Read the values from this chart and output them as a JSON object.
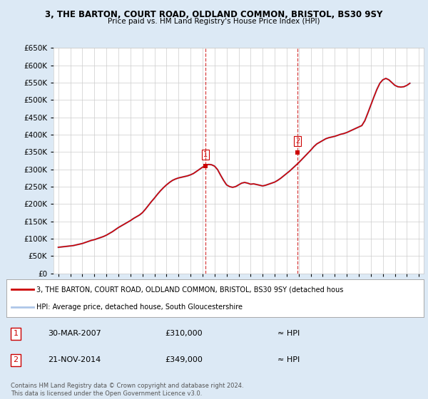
{
  "title": "3, THE BARTON, COURT ROAD, OLDLAND COMMON, BRISTOL, BS30 9SY",
  "subtitle": "Price paid vs. HM Land Registry's House Price Index (HPI)",
  "ylim": [
    0,
    650000
  ],
  "ytick_values": [
    0,
    50000,
    100000,
    150000,
    200000,
    250000,
    300000,
    350000,
    400000,
    450000,
    500000,
    550000,
    600000,
    650000
  ],
  "hpi_line_color": "#aec6e8",
  "price_line_color": "#cc0000",
  "sale1_x": 2007.25,
  "sale1_y": 310000,
  "sale2_x": 2014.9,
  "sale2_y": 349000,
  "legend_property": "3, THE BARTON, COURT ROAD, OLDLAND COMMON, BRISTOL, BS30 9SY (detached hous",
  "legend_hpi": "HPI: Average price, detached house, South Gloucestershire",
  "table_row1_label": "1",
  "table_row1_date": "30-MAR-2007",
  "table_row1_price": "£310,000",
  "table_row1_hpi": "≈ HPI",
  "table_row2_label": "2",
  "table_row2_date": "21-NOV-2014",
  "table_row2_price": "£349,000",
  "table_row2_hpi": "≈ HPI",
  "footer": "Contains HM Land Registry data © Crown copyright and database right 2024.\nThis data is licensed under the Open Government Licence v3.0.",
  "bg_color": "#dce9f5",
  "plot_bg_color": "#ffffff",
  "hpi_data_x": [
    1995.0,
    1995.25,
    1995.5,
    1995.75,
    1996.0,
    1996.25,
    1996.5,
    1996.75,
    1997.0,
    1997.25,
    1997.5,
    1997.75,
    1998.0,
    1998.25,
    1998.5,
    1998.75,
    1999.0,
    1999.25,
    1999.5,
    1999.75,
    2000.0,
    2000.25,
    2000.5,
    2000.75,
    2001.0,
    2001.25,
    2001.5,
    2001.75,
    2002.0,
    2002.25,
    2002.5,
    2002.75,
    2003.0,
    2003.25,
    2003.5,
    2003.75,
    2004.0,
    2004.25,
    2004.5,
    2004.75,
    2005.0,
    2005.25,
    2005.5,
    2005.75,
    2006.0,
    2006.25,
    2006.5,
    2006.75,
    2007.0,
    2007.25,
    2007.5,
    2007.75,
    2008.0,
    2008.25,
    2008.5,
    2008.75,
    2009.0,
    2009.25,
    2009.5,
    2009.75,
    2010.0,
    2010.25,
    2010.5,
    2010.75,
    2011.0,
    2011.25,
    2011.5,
    2011.75,
    2012.0,
    2012.25,
    2012.5,
    2012.75,
    2013.0,
    2013.25,
    2013.5,
    2013.75,
    2014.0,
    2014.25,
    2014.5,
    2014.75,
    2015.0,
    2015.25,
    2015.5,
    2015.75,
    2016.0,
    2016.25,
    2016.5,
    2016.75,
    2017.0,
    2017.25,
    2017.5,
    2017.75,
    2018.0,
    2018.25,
    2018.5,
    2018.75,
    2019.0,
    2019.25,
    2019.5,
    2019.75,
    2020.0,
    2020.25,
    2020.5,
    2020.75,
    2021.0,
    2021.25,
    2021.5,
    2021.75,
    2022.0,
    2022.25,
    2022.5,
    2022.75,
    2023.0,
    2023.25,
    2023.5,
    2023.75,
    2024.0,
    2024.25
  ],
  "hpi_data_y": [
    75000,
    76000,
    77000,
    78000,
    79000,
    80000,
    82000,
    84000,
    86000,
    89000,
    92000,
    95000,
    97000,
    100000,
    103000,
    106000,
    110000,
    115000,
    120000,
    126000,
    132000,
    137000,
    142000,
    147000,
    152000,
    158000,
    163000,
    168000,
    175000,
    185000,
    196000,
    207000,
    217000,
    228000,
    238000,
    247000,
    255000,
    262000,
    268000,
    272000,
    275000,
    277000,
    279000,
    281000,
    284000,
    288000,
    294000,
    300000,
    306000,
    311000,
    314000,
    313000,
    309000,
    299000,
    283000,
    268000,
    255000,
    250000,
    248000,
    250000,
    255000,
    260000,
    262000,
    260000,
    257000,
    258000,
    256000,
    254000,
    252000,
    254000,
    257000,
    260000,
    263000,
    268000,
    274000,
    281000,
    288000,
    295000,
    303000,
    311000,
    319000,
    328000,
    337000,
    346000,
    355000,
    365000,
    373000,
    378000,
    383000,
    388000,
    391000,
    393000,
    395000,
    398000,
    401000,
    403000,
    406000,
    410000,
    414000,
    418000,
    422000,
    426000,
    440000,
    462000,
    485000,
    508000,
    530000,
    548000,
    558000,
    562000,
    558000,
    550000,
    542000,
    538000,
    537000,
    538000,
    542000,
    548000
  ],
  "xticks": [
    1995,
    1996,
    1997,
    1998,
    1999,
    2000,
    2001,
    2002,
    2003,
    2004,
    2005,
    2006,
    2007,
    2008,
    2009,
    2010,
    2011,
    2012,
    2013,
    2014,
    2015,
    2016,
    2017,
    2018,
    2019,
    2020,
    2021,
    2022,
    2023,
    2024,
    2025
  ]
}
